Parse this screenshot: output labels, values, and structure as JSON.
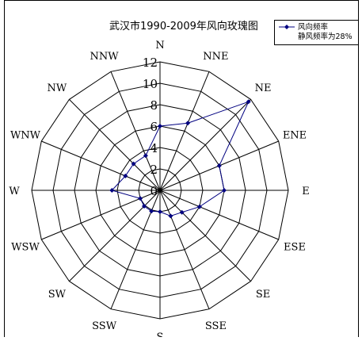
{
  "chart_data": {
    "type": "radar",
    "title": "武汉市1990-2009年风向玫瑰图",
    "directions": [
      "N",
      "NNE",
      "NE",
      "ENE",
      "E",
      "ESE",
      "SE",
      "SSE",
      "S",
      "SSW",
      "SW",
      "WSW",
      "W",
      "WNW",
      "NW",
      "NNW"
    ],
    "ticks": [
      "0",
      "2",
      "4",
      "6",
      "8",
      "10",
      "12"
    ],
    "rlim": [
      0,
      12
    ],
    "grid": true,
    "legend_position": "top-right",
    "series": [
      {
        "name": "风向频率",
        "color": "#000080",
        "values": [
          6,
          6.8,
          11.7,
          6,
          6,
          4,
          2.9,
          2.6,
          2,
          2.1,
          2.1,
          2,
          4.5,
          3.5,
          3.5,
          3.5
        ]
      }
    ],
    "legend": {
      "series_label": "风向频率",
      "note": "静风频率为28%"
    }
  }
}
